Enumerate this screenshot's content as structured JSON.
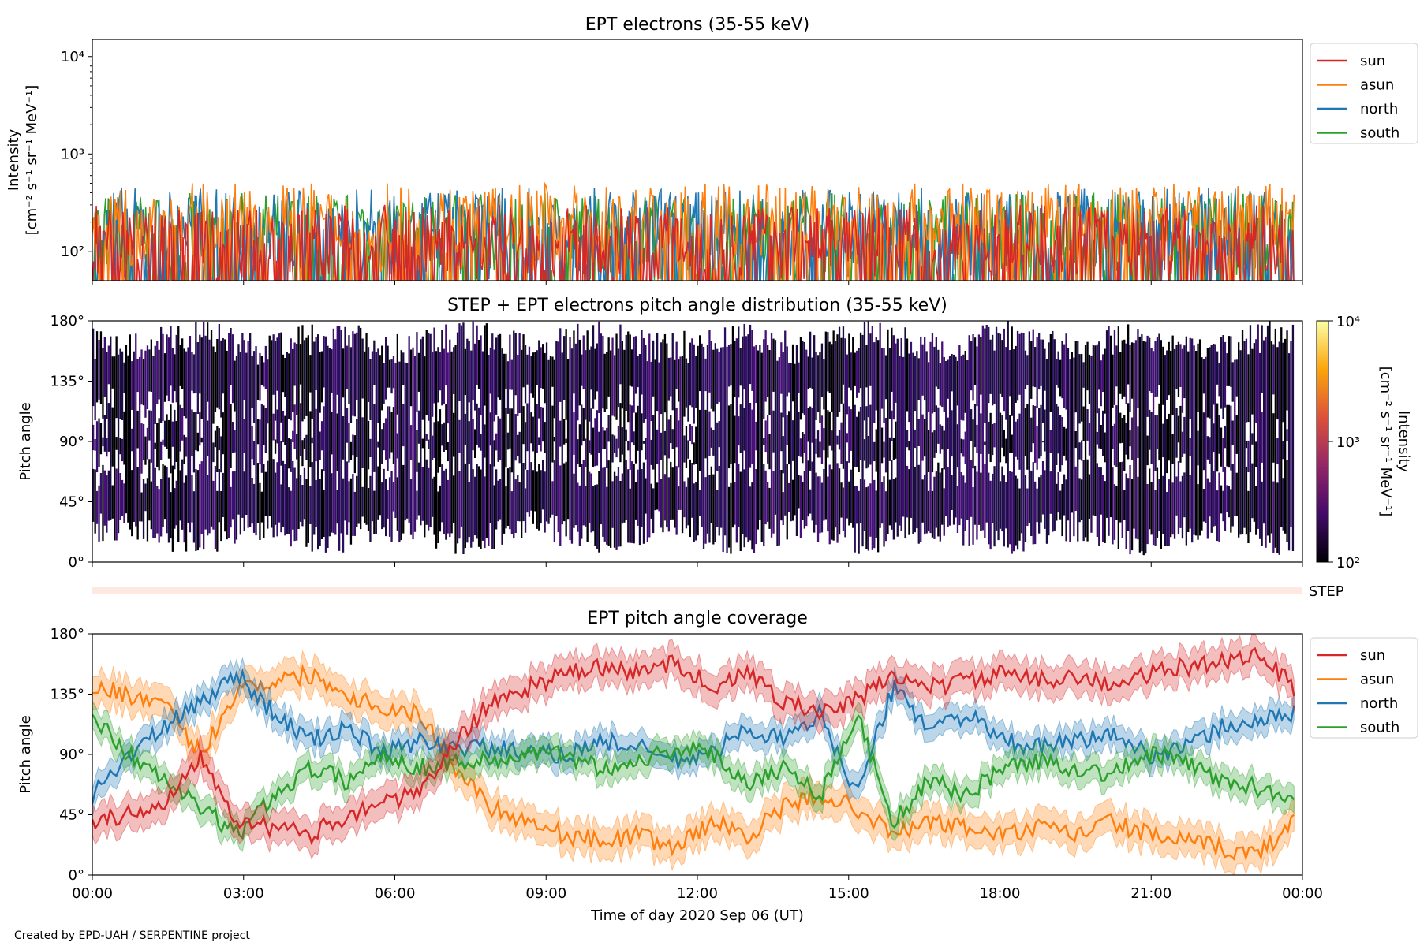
{
  "chart_data": [
    {
      "type": "line",
      "title": "EPT electrons (35-55 keV)",
      "ylabel_line1": "Intensity",
      "ylabel_line2": "[cm⁻² s⁻¹ sr⁻¹ MeV⁻¹]",
      "yscale": "log",
      "ylim": [
        50,
        15000
      ],
      "yticks": [
        "10²",
        "10³",
        "10⁴"
      ],
      "legend_position": "outside-top-right",
      "series": [
        {
          "name": "sun",
          "color": "#d62728",
          "typical_range": [
            50,
            300
          ]
        },
        {
          "name": "asun",
          "color": "#ff7f0e",
          "typical_range": [
            60,
            500
          ]
        },
        {
          "name": "north",
          "color": "#1f77b4",
          "typical_range": [
            50,
            450
          ]
        },
        {
          "name": "south",
          "color": "#2ca02c",
          "typical_range": [
            50,
            400
          ]
        }
      ]
    },
    {
      "type": "heatmap",
      "title": "STEP + EPT electrons pitch angle distribution (35-55 keV)",
      "ylabel": "Pitch angle",
      "yticks": [
        "0°",
        "45°",
        "90°",
        "135°",
        "180°"
      ],
      "ylim": [
        0,
        180
      ],
      "colorbar": {
        "label_line1": "Intensity",
        "label_line2": "[cm⁻² s⁻¹ sr⁻¹ MeV⁻¹]",
        "scale": "log",
        "ticks": [
          "10²",
          "10³",
          "10⁴"
        ],
        "colormap": "inferno"
      }
    },
    {
      "type": "bar",
      "label": "STEP"
    },
    {
      "type": "area",
      "title": "EPT pitch angle coverage",
      "ylabel": "Pitch angle",
      "yticks": [
        "0°",
        "45°",
        "90°",
        "135°",
        "180°"
      ],
      "ylim": [
        0,
        180
      ],
      "legend_position": "outside-top-right",
      "series": [
        {
          "name": "sun",
          "color": "#d62728",
          "values": [
            40,
            45,
            55,
            90,
            40,
            35,
            30,
            45,
            55,
            60,
            100,
            130,
            140,
            150,
            155,
            150,
            160,
            140,
            150,
            130,
            120,
            130,
            150,
            140,
            145,
            150,
            145,
            150,
            140,
            150,
            155,
            160,
            165,
            140
          ],
          "band_halfwidth": 12
        },
        {
          "name": "asun",
          "color": "#ff7f0e",
          "values": [
            140,
            135,
            125,
            90,
            140,
            145,
            150,
            135,
            125,
            120,
            80,
            50,
            40,
            30,
            25,
            30,
            20,
            40,
            30,
            50,
            60,
            50,
            30,
            40,
            35,
            30,
            35,
            30,
            40,
            30,
            25,
            20,
            15,
            40
          ],
          "band_halfwidth": 12
        },
        {
          "name": "north",
          "color": "#1f77b4",
          "values": [
            60,
            90,
            110,
            130,
            150,
            120,
            100,
            110,
            90,
            100,
            95,
            95,
            90,
            90,
            100,
            95,
            85,
            90,
            110,
            100,
            120,
            60,
            140,
            110,
            120,
            100,
            95,
            100,
            105,
            90,
            95,
            110,
            115,
            120
          ],
          "band_halfwidth": 10
        },
        {
          "name": "south",
          "color": "#2ca02c",
          "values": [
            120,
            90,
            70,
            50,
            30,
            60,
            80,
            70,
            90,
            80,
            85,
            85,
            90,
            90,
            80,
            85,
            95,
            90,
            70,
            80,
            60,
            120,
            40,
            70,
            60,
            80,
            85,
            80,
            75,
            90,
            85,
            70,
            65,
            60
          ],
          "band_halfwidth": 10
        }
      ]
    }
  ],
  "x_axis": {
    "xlabel": "Time of day 2020 Sep 06 (UT)",
    "ticks": [
      "00:00",
      "03:00",
      "06:00",
      "09:00",
      "12:00",
      "15:00",
      "18:00",
      "21:00",
      "00:00"
    ],
    "xlim_hours": [
      0,
      24
    ]
  },
  "footer": "Created by EPD-UAH / SERPENTINE project"
}
